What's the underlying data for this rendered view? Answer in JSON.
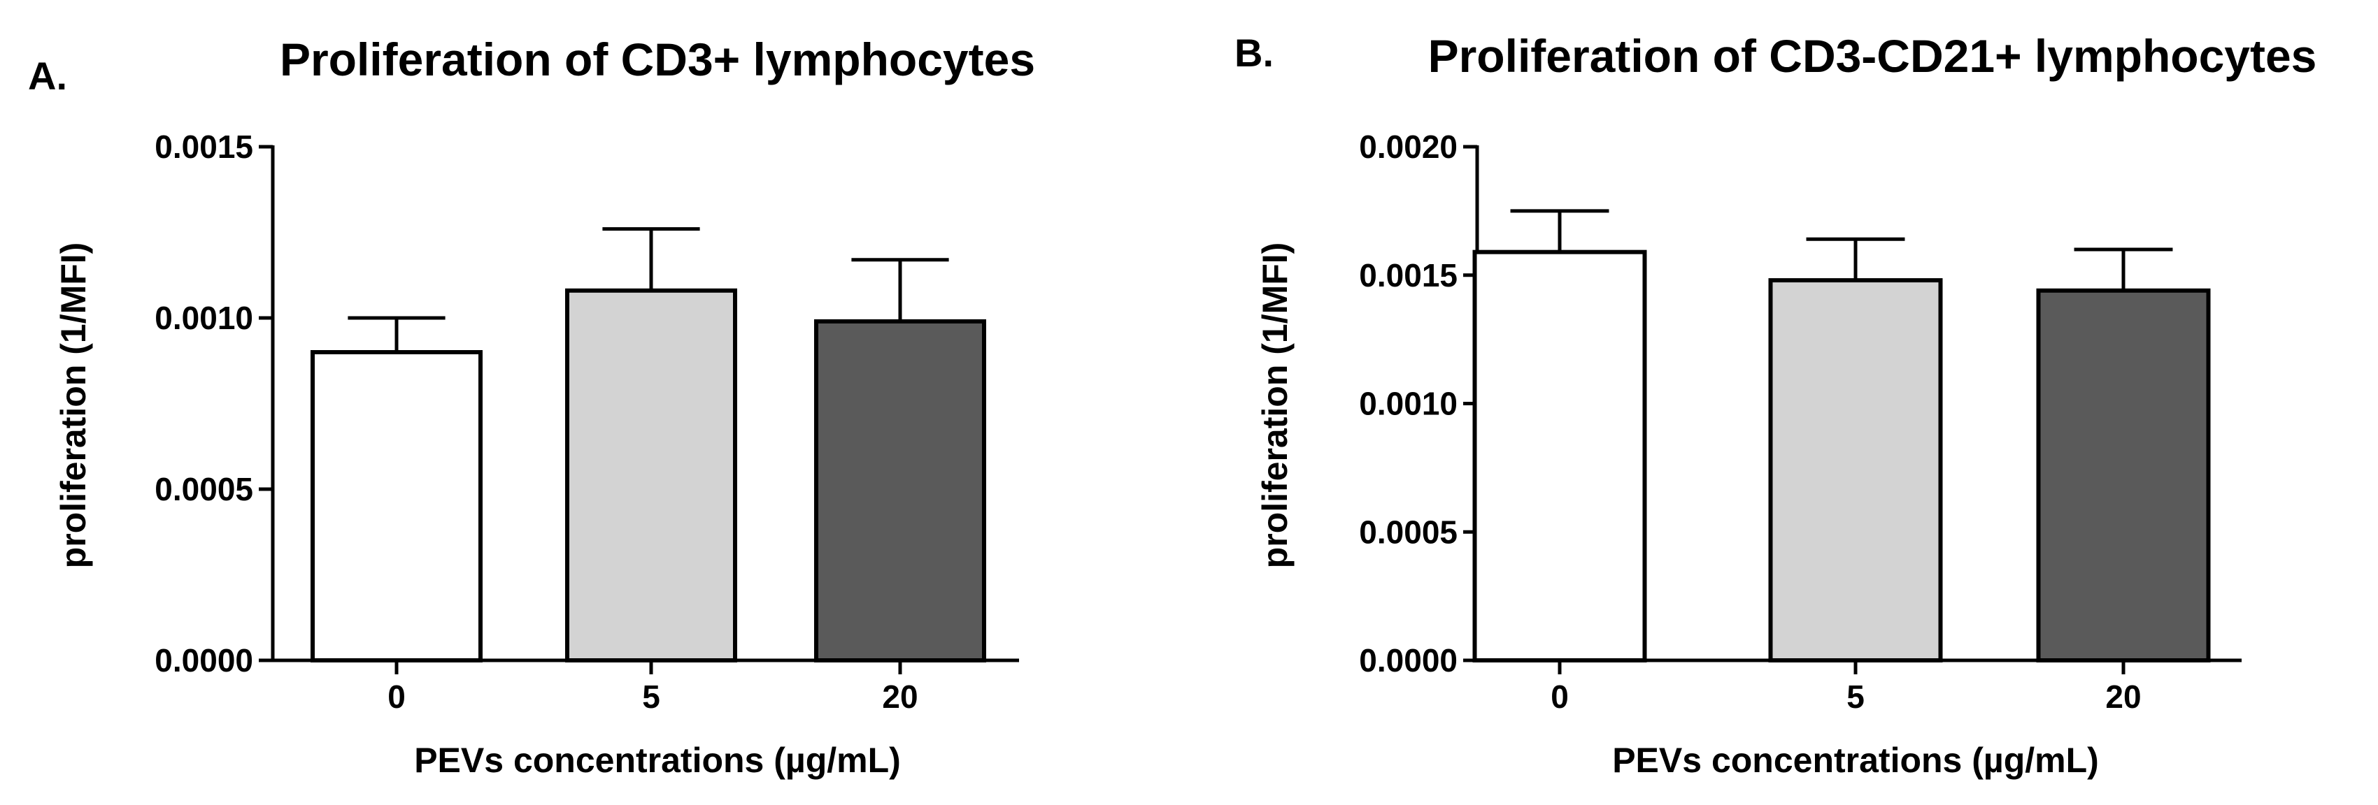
{
  "chart_data": [
    {
      "panel_label": "A.",
      "type": "bar",
      "title": "Proliferation of CD3+ lymphocytes",
      "xlabel": "PEVs concentrations (µg/mL)",
      "ylabel": "proliferation (1/MFI)",
      "categories": [
        "0",
        "5",
        "20"
      ],
      "values": [
        0.0009,
        0.00108,
        0.00099
      ],
      "errors": [
        0.0001,
        0.00018,
        0.00018
      ],
      "bar_colors": [
        "#ffffff",
        "#d3d3d3",
        "#5a5a5a"
      ],
      "ylim": [
        0,
        0.0015
      ],
      "yticks": [
        "0.0000",
        "0.0005",
        "0.0010",
        "0.0015"
      ],
      "grid": false
    },
    {
      "panel_label": "B.",
      "type": "bar",
      "title": "Proliferation of CD3-CD21+ lymphocytes",
      "xlabel": "PEVs concentrations (µg/mL)",
      "ylabel": "proliferation (1/MFI)",
      "categories": [
        "0",
        "5",
        "20"
      ],
      "values": [
        0.00159,
        0.00148,
        0.00144
      ],
      "errors": [
        0.00016,
        0.00016,
        0.00016
      ],
      "bar_colors": [
        "#ffffff",
        "#d3d3d3",
        "#5a5a5a"
      ],
      "ylim": [
        0,
        0.002
      ],
      "yticks": [
        "0.0000",
        "0.0005",
        "0.0010",
        "0.0015",
        "0.0020"
      ],
      "grid": false
    }
  ]
}
